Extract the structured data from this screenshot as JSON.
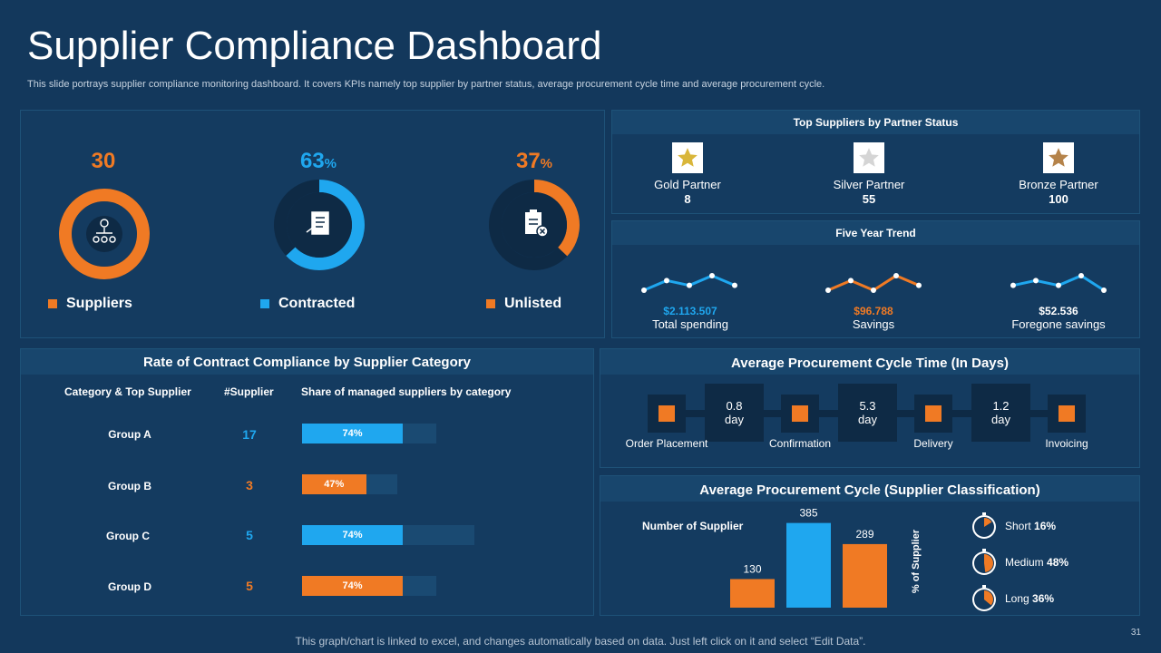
{
  "header": {
    "title": "Supplier Compliance Dashboard",
    "subtitle": "This slide portrays supplier compliance monitoring dashboard. It covers KPIs namely top supplier by partner status, average procurement cycle time and average procurement cycle."
  },
  "kpis": [
    {
      "value": "30",
      "suffix": "",
      "label": "Suppliers",
      "color": "#f07a24",
      "fraction": 1.0
    },
    {
      "value": "63",
      "suffix": "%",
      "label": "Contracted",
      "color": "#1fa7ef",
      "fraction": 0.63
    },
    {
      "value": "37",
      "suffix": "%",
      "label": "Unlisted",
      "color": "#f07a24",
      "fraction": 0.37
    }
  ],
  "partners": {
    "title": "Top Suppliers by Partner Status",
    "items": [
      {
        "label": "Gold Partner",
        "value": "8",
        "star_color": "#d9b63a"
      },
      {
        "label": "Silver Partner",
        "value": "55",
        "star_color": "#d5d5d5"
      },
      {
        "label": "Bronze Partner",
        "value": "100",
        "star_color": "#b5834a"
      }
    ]
  },
  "trend": {
    "title": "Five Year Trend",
    "items": [
      {
        "amount": "$2.113.507",
        "label": "Total spending",
        "color": "#1fa7ef",
        "points": [
          2,
          4,
          3,
          5,
          3
        ]
      },
      {
        "amount": "$96.788",
        "label": "Savings",
        "color": "#f07a24",
        "points": [
          2,
          4,
          2,
          5,
          3
        ]
      },
      {
        "amount": "$52.536",
        "label": "Foregone savings",
        "color": "#1fa7ef",
        "points": [
          3,
          4,
          3,
          5,
          2
        ]
      }
    ]
  },
  "compliance": {
    "title": "Rate of Contract  Compliance by Supplier Category",
    "col_category": "Category & Top  Supplier",
    "col_supplier": "#Supplier",
    "col_share": "Share of managed suppliers by category",
    "rows": [
      {
        "group": "Group A",
        "count": "17",
        "share_label": "74%",
        "share": 74,
        "color": "#1fa7ef",
        "track": 0.66
      },
      {
        "group": "Group B",
        "count": "3",
        "share_label": "47%",
        "share": 47,
        "color": "#f07a24",
        "track": 0.47
      },
      {
        "group": "Group C",
        "count": "5",
        "share_label": "74%",
        "share": 74,
        "color": "#1fa7ef",
        "track": 0.85
      },
      {
        "group": "Group D",
        "count": "5",
        "share_label": "74%",
        "share": 74,
        "color": "#f07a24",
        "track": 0.66
      }
    ]
  },
  "cycle_time": {
    "title": "Average Procurement Cycle Time (In Days)",
    "stages": [
      "Order Placement",
      "Confirmation",
      "Delivery",
      "Invoicing"
    ],
    "durations": [
      {
        "value": "0.8",
        "unit": "day"
      },
      {
        "value": "5.3",
        "unit": "day"
      },
      {
        "value": "1.2",
        "unit": "day"
      }
    ]
  },
  "classification": {
    "title": "Average Procurement Cycle  (Supplier Classification)",
    "number_label": "Number of Supplier",
    "axis_label": "% of Supplier",
    "items": [
      {
        "name": "Short",
        "pct": "16%",
        "fraction": 0.16
      },
      {
        "name": "Medium",
        "pct": "48%",
        "fraction": 0.48
      },
      {
        "name": "Long",
        "pct": "36%",
        "fraction": 0.36
      }
    ]
  },
  "chart_data": {
    "type": "bar",
    "title": "Number of Supplier",
    "categories": [
      "",
      "",
      ""
    ],
    "values": [
      130,
      385,
      289
    ],
    "colors": [
      "#f07a24",
      "#1fa7ef",
      "#f07a24"
    ],
    "ylim": [
      0,
      400
    ]
  },
  "footer": {
    "note": "This graph/chart is linked to excel, and changes automatically based on data. Just left click on it and select “Edit Data”.",
    "page": "31"
  }
}
